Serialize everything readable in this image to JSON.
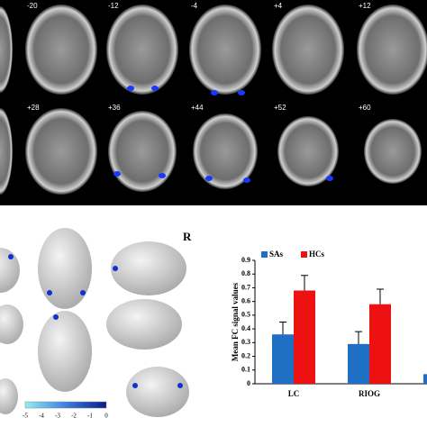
{
  "slices": {
    "row1": [
      "-20",
      "-12",
      "-4",
      "+4",
      "+12"
    ],
    "row2": [
      "+28",
      "+36",
      "+44",
      "+52",
      "+60"
    ]
  },
  "surface": {
    "side_label": "R",
    "colorbar_ticks": [
      -5,
      -4,
      -3,
      -2,
      -1,
      0
    ]
  },
  "chart_data": {
    "type": "bar",
    "ylabel": "Mean FC signal values",
    "categories": [
      "LC",
      "RIOG",
      null
    ],
    "series": [
      {
        "name": "SAs",
        "color": "#1f6fc5",
        "values": [
          0.36,
          0.29,
          0.07
        ],
        "errors": [
          0.09,
          0.09,
          null
        ]
      },
      {
        "name": "HCs",
        "color": "#ee1111",
        "values": [
          0.68,
          0.58,
          null
        ],
        "errors": [
          0.11,
          0.11,
          null
        ]
      }
    ],
    "ylim": [
      0,
      0.9
    ],
    "yticks": [
      0,
      0.1,
      0.2,
      0.3,
      0.4,
      0.5,
      0.6,
      0.7,
      0.8,
      0.9
    ],
    "legend": "top"
  }
}
